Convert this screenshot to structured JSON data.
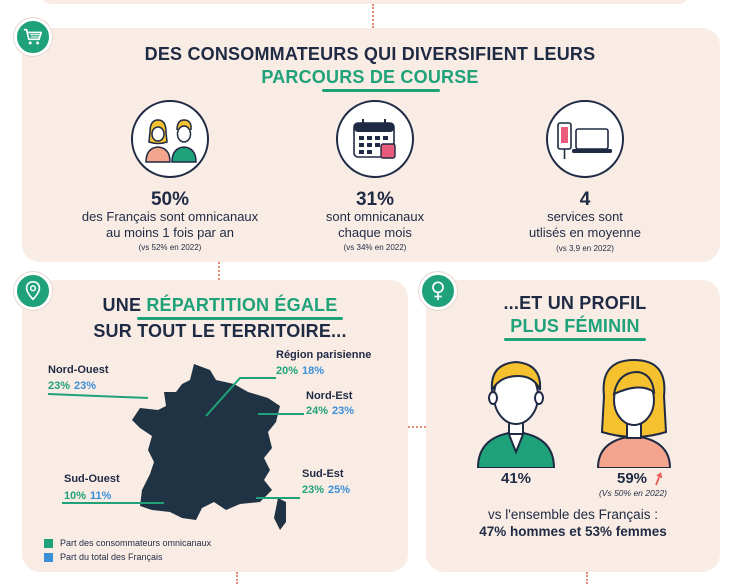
{
  "section1": {
    "title_line1": "DES CONSOMMATEURS QUI DIVERSIFIENT LEURS",
    "title_line2": "PARCOURS DE COURSE",
    "badge_icon": "shopping-cart-icon",
    "stats": [
      {
        "icon": "people-icon",
        "value": "50%",
        "line1": "des Français sont omnicanaux",
        "line2": "au moins 1 fois par an",
        "compare": "(vs  52% en 2022)"
      },
      {
        "icon": "calendar-icon",
        "value": "31%",
        "line1": "sont omnicanaux",
        "line2": "chaque mois",
        "compare": "(vs  34% en 2022)"
      },
      {
        "icon": "devices-icon",
        "value": "4",
        "line1": "services sont",
        "line2": "utlisés en moyenne",
        "compare": "(vs  3,9 en 2022)"
      }
    ]
  },
  "section2": {
    "badge_icon": "map-pin-icon",
    "title_line1_a": "UNE ",
    "title_line1_b": "RÉPARTITION ÉGALE",
    "title_line2": "SUR TOUT LE TERRITOIRE...",
    "regions": [
      {
        "name": "Nord-Ouest",
        "omni": "23%",
        "total": "23%"
      },
      {
        "name": "Région parisienne",
        "omni": "20%",
        "total": "18%"
      },
      {
        "name": "Nord-Est",
        "omni": "24%",
        "total": "23%"
      },
      {
        "name": "Sud-Ouest",
        "omni": "10%",
        "total": "11%"
      },
      {
        "name": "Sud-Est",
        "omni": "23%",
        "total": "25%"
      }
    ],
    "legend": [
      {
        "label": "Part des consommateurs omnicanaux",
        "color": "#1fa27a"
      },
      {
        "label": "Part du total des Français",
        "color": "#3a8fd9"
      }
    ]
  },
  "section3": {
    "badge_icon": "female-symbol-icon",
    "title_line1": "...ET UN PROFIL",
    "title_line2": "PLUS FÉMININ",
    "men_value": "41%",
    "women_value": "59%",
    "women_compare": "(Vs  50% en 2022)",
    "footer_line1": "vs l'ensemble des Français :",
    "footer_line2": "47% hommes et 53% femmes"
  },
  "colors": {
    "accent": "#1fa27a",
    "blue": "#3a8fd9",
    "navy": "#1f2a44",
    "card": "#f9ece4",
    "dots": "#e88a7a"
  }
}
